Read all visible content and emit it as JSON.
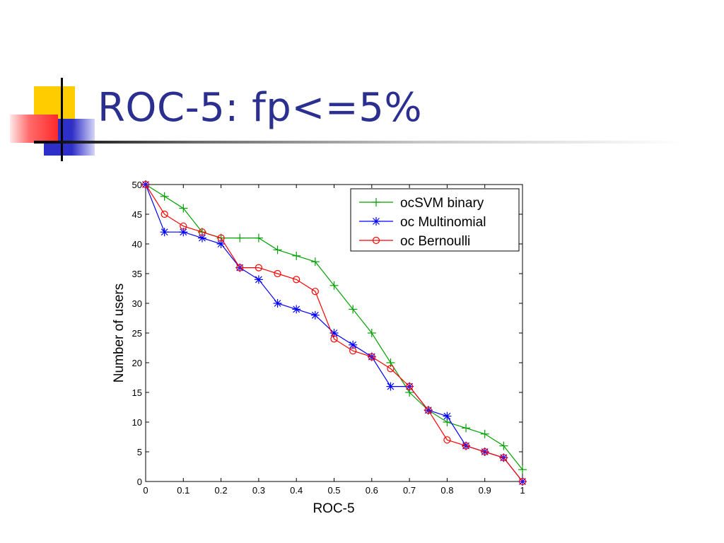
{
  "slide": {
    "title": "ROC-5: fp<=5%"
  },
  "colors": {
    "title": "#2b2f8f",
    "accent_yellow": "#ffcc00",
    "accent_red": "#ff3333",
    "accent_blue": "#2e2ec8"
  },
  "chart_data": {
    "type": "line",
    "xlabel": "ROC-5",
    "ylabel": "Number of users",
    "xlim": [
      0,
      1
    ],
    "ylim": [
      0,
      50
    ],
    "xticks": [
      "0",
      "0.1",
      "0.2",
      "0.3",
      "0.4",
      "0.5",
      "0.6",
      "0.7",
      "0.8",
      "0.9",
      "1"
    ],
    "yticks": [
      "0",
      "5",
      "10",
      "15",
      "20",
      "25",
      "30",
      "35",
      "40",
      "45",
      "50"
    ],
    "grid": false,
    "legend": "top-right",
    "x": [
      0,
      0.05,
      0.1,
      0.15,
      0.2,
      0.25,
      0.3,
      0.35,
      0.4,
      0.45,
      0.5,
      0.55,
      0.6,
      0.65,
      0.7,
      0.75,
      0.8,
      0.85,
      0.9,
      0.95,
      1
    ],
    "series": [
      {
        "name": "ocSVM binary",
        "color": "#00a000",
        "marker": "plus",
        "values": [
          50,
          48,
          46,
          42,
          41,
          41,
          41,
          39,
          38,
          37,
          33,
          29,
          25,
          20,
          15,
          12,
          10,
          9,
          8,
          6,
          2
        ]
      },
      {
        "name": "oc Multinomial",
        "color": "#0000ff",
        "marker": "asterisk",
        "values": [
          50,
          42,
          42,
          41,
          40,
          36,
          34,
          30,
          29,
          28,
          25,
          23,
          21,
          16,
          16,
          12,
          11,
          6,
          5,
          4,
          0
        ]
      },
      {
        "name": "oc Bernoulli",
        "color": "#ff0000",
        "marker": "circle",
        "values": [
          50,
          45,
          43,
          42,
          41,
          36,
          36,
          35,
          34,
          32,
          24,
          22,
          21,
          19,
          16,
          12,
          7,
          6,
          5,
          4,
          0
        ]
      }
    ]
  }
}
